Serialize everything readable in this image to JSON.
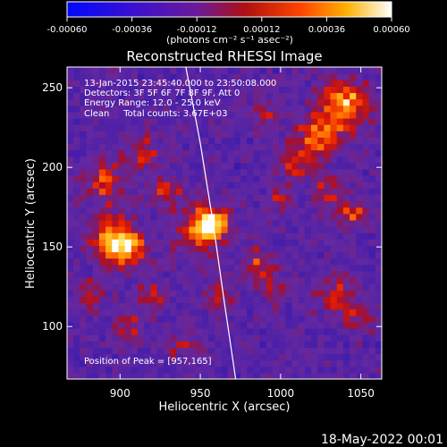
{
  "colorbar": {
    "ticks": [
      "-0.00060",
      "-0.00036",
      "-0.00012",
      "0.00012",
      "0.00036",
      "0.00060"
    ],
    "tick_values": [
      -0.0006,
      -0.00036,
      -0.00012,
      0.00012,
      0.00036,
      0.0006
    ],
    "unit": "(photons cm⁻² s⁻¹ asec⁻²)",
    "range": [
      -0.0006,
      0.0006
    ],
    "colormap": "blue-purple-red-orange-yellow-white"
  },
  "chart_data": {
    "type": "heatmap",
    "title": "Reconstructed RHESSI Image",
    "xlabel": "Heliocentric X (arcsec)",
    "ylabel": "Heliocentric Y (arcsec)",
    "xlim": [
      867,
      1063
    ],
    "ylim": [
      67,
      263
    ],
    "xticks": [
      900,
      950,
      1000,
      1050
    ],
    "yticks": [
      100,
      150,
      200,
      250
    ],
    "annotations": [
      "13-Jan-2015 23:45:40.000 to 23:50:08.000",
      "Detectors: 3F 5F 6F 7F 8F 9F, Att 0",
      "Energy Range: 12.0 - 25.0 keV",
      "Clean     Total counts: 3.67E+03"
    ],
    "peak_label": "Position of Peak = [957,165]",
    "peak": [
      957,
      165
    ],
    "limb_curve": [
      [
        941,
        263
      ],
      [
        950,
        215
      ],
      [
        958,
        165
      ],
      [
        965,
        115
      ],
      [
        972,
        67
      ]
    ],
    "blobs": [
      {
        "x": 957,
        "y": 165,
        "amp": 1.0,
        "sigma": 6
      },
      {
        "x": 950,
        "y": 160,
        "amp": 0.5,
        "sigma": 12
      },
      {
        "x": 895,
        "y": 155,
        "amp": 0.85,
        "sigma": 10
      },
      {
        "x": 905,
        "y": 148,
        "amp": 0.6,
        "sigma": 8
      },
      {
        "x": 890,
        "y": 190,
        "amp": 0.55,
        "sigma": 9
      },
      {
        "x": 915,
        "y": 210,
        "amp": 0.5,
        "sigma": 8
      },
      {
        "x": 930,
        "y": 185,
        "amp": 0.45,
        "sigma": 7
      },
      {
        "x": 1040,
        "y": 240,
        "amp": 0.85,
        "sigma": 10
      },
      {
        "x": 1025,
        "y": 220,
        "amp": 0.75,
        "sigma": 9
      },
      {
        "x": 1010,
        "y": 205,
        "amp": 0.55,
        "sigma": 8
      },
      {
        "x": 1045,
        "y": 170,
        "amp": 0.55,
        "sigma": 7
      },
      {
        "x": 1030,
        "y": 185,
        "amp": 0.45,
        "sigma": 7
      },
      {
        "x": 1035,
        "y": 120,
        "amp": 0.5,
        "sigma": 8
      },
      {
        "x": 1050,
        "y": 105,
        "amp": 0.45,
        "sigma": 7
      },
      {
        "x": 985,
        "y": 140,
        "amp": 0.45,
        "sigma": 7
      },
      {
        "x": 995,
        "y": 125,
        "amp": 0.4,
        "sigma": 7
      },
      {
        "x": 960,
        "y": 120,
        "amp": 0.45,
        "sigma": 7
      },
      {
        "x": 920,
        "y": 120,
        "amp": 0.45,
        "sigma": 7
      },
      {
        "x": 905,
        "y": 100,
        "amp": 0.4,
        "sigma": 7
      },
      {
        "x": 880,
        "y": 120,
        "amp": 0.4,
        "sigma": 7
      },
      {
        "x": 990,
        "y": 235,
        "amp": 0.35,
        "sigma": 7
      },
      {
        "x": 1000,
        "y": 180,
        "amp": 0.35,
        "sigma": 6
      },
      {
        "x": 940,
        "y": 90,
        "amp": 0.35,
        "sigma": 7
      }
    ]
  },
  "footer": {
    "date": "18-May-2022 00:01"
  }
}
